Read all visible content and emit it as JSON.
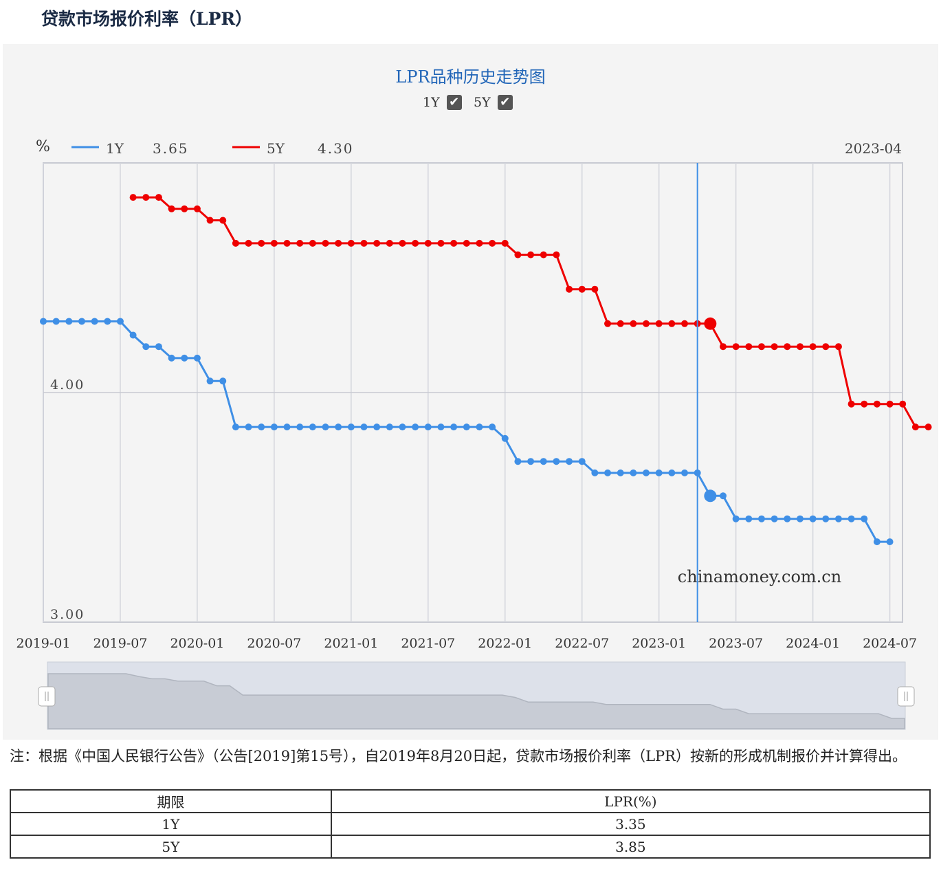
{
  "page": {
    "title": "贷款市场报价利率（LPR）"
  },
  "chart_header": {
    "title": "LPR品种历史走势图",
    "toggles": [
      {
        "label": "1Y",
        "checked": true
      },
      {
        "label": "5Y",
        "checked": true
      }
    ],
    "checkmark_icon": "✔"
  },
  "tooltip": {
    "unit": "%",
    "date": "2023-04",
    "items": [
      {
        "name": "1Y",
        "value": "3.65",
        "color": "#3f8fe6"
      },
      {
        "name": "5Y",
        "value": "4.30",
        "color": "#ee0000"
      }
    ]
  },
  "watermark": "chinamoney.com.cn",
  "footnote": "注：根据《中国人民银行公告》（公告[2019]第15号），自2019年8月20日起，贷款市场报价利率（LPR）按新的形成机制报价并计算得出。",
  "table": {
    "headers": [
      "期限",
      "LPR(%)"
    ],
    "rows": [
      [
        "1Y",
        "3.35"
      ],
      [
        "5Y",
        "3.85"
      ]
    ]
  },
  "chart_data": {
    "type": "line",
    "x_start": "2019-01",
    "x_tick_labels": [
      "2019-01",
      "2019-07",
      "2020-01",
      "2020-07",
      "2021-01",
      "2021-07",
      "2022-01",
      "2022-07",
      "2023-01",
      "2023-07",
      "2024-01",
      "2024-07"
    ],
    "y_tick_labels": [
      "4.00",
      "3.00"
    ],
    "ylim": [
      3.0,
      5.0
    ],
    "grid": true,
    "highlighted_month": "2023-04",
    "series": [
      {
        "name": "1Y",
        "color": "#3f8fe6",
        "start": "2019-01",
        "values": [
          4.31,
          4.31,
          4.31,
          4.31,
          4.31,
          4.31,
          4.31,
          4.25,
          4.2,
          4.2,
          4.15,
          4.15,
          4.15,
          4.05,
          4.05,
          3.85,
          3.85,
          3.85,
          3.85,
          3.85,
          3.85,
          3.85,
          3.85,
          3.85,
          3.85,
          3.85,
          3.85,
          3.85,
          3.85,
          3.85,
          3.85,
          3.85,
          3.85,
          3.85,
          3.85,
          3.85,
          3.8,
          3.7,
          3.7,
          3.7,
          3.7,
          3.7,
          3.7,
          3.65,
          3.65,
          3.65,
          3.65,
          3.65,
          3.65,
          3.65,
          3.65,
          3.65,
          3.55,
          3.55,
          3.45,
          3.45,
          3.45,
          3.45,
          3.45,
          3.45,
          3.45,
          3.45,
          3.45,
          3.45,
          3.45,
          3.35,
          3.35
        ]
      },
      {
        "name": "5Y",
        "color": "#ee0000",
        "start": "2019-08",
        "values": [
          4.85,
          4.85,
          4.85,
          4.8,
          4.8,
          4.8,
          4.75,
          4.75,
          4.65,
          4.65,
          4.65,
          4.65,
          4.65,
          4.65,
          4.65,
          4.65,
          4.65,
          4.65,
          4.65,
          4.65,
          4.65,
          4.65,
          4.65,
          4.65,
          4.65,
          4.65,
          4.65,
          4.65,
          4.65,
          4.65,
          4.6,
          4.6,
          4.6,
          4.6,
          4.45,
          4.45,
          4.45,
          4.3,
          4.3,
          4.3,
          4.3,
          4.3,
          4.3,
          4.3,
          4.3,
          4.3,
          4.2,
          4.2,
          4.2,
          4.2,
          4.2,
          4.2,
          4.2,
          4.2,
          4.2,
          4.2,
          3.95,
          3.95,
          3.95,
          3.95,
          3.95,
          3.85,
          3.85
        ]
      }
    ]
  }
}
